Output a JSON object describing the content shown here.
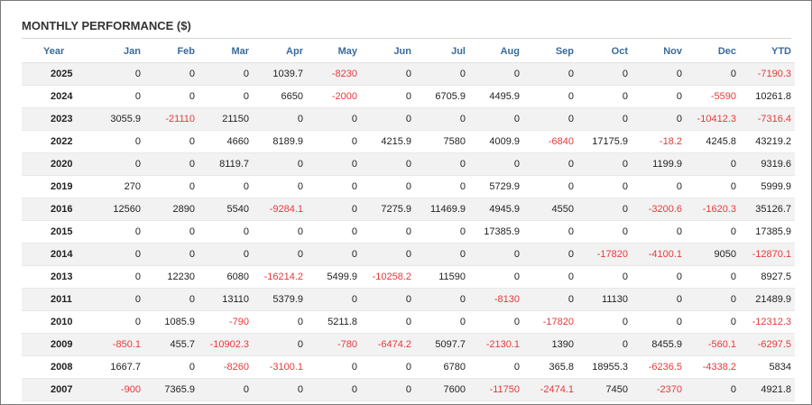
{
  "title": "MONTHLY PERFORMANCE ($)",
  "colors": {
    "header_text": "#3a6b9a",
    "negative": "#e8393b",
    "row_stripe": "#f2f2f2"
  },
  "columns": [
    "Year",
    "Jan",
    "Feb",
    "Mar",
    "Apr",
    "May",
    "Jun",
    "Jul",
    "Aug",
    "Sep",
    "Oct",
    "Nov",
    "Dec",
    "YTD"
  ],
  "rows": [
    {
      "year": "2025",
      "values": [
        "0",
        "0",
        "0",
        "1039.7",
        "-8230",
        "0",
        "0",
        "0",
        "0",
        "0",
        "0",
        "0",
        "-7190.3"
      ]
    },
    {
      "year": "2024",
      "values": [
        "0",
        "0",
        "0",
        "6650",
        "-2000",
        "0",
        "6705.9",
        "4495.9",
        "0",
        "0",
        "0",
        "-5590",
        "10261.8"
      ]
    },
    {
      "year": "2023",
      "values": [
        "3055.9",
        "-21110",
        "21150",
        "0",
        "0",
        "0",
        "0",
        "0",
        "0",
        "0",
        "0",
        "-10412.3",
        "-7316.4"
      ]
    },
    {
      "year": "2022",
      "values": [
        "0",
        "0",
        "4660",
        "8189.9",
        "0",
        "4215.9",
        "7580",
        "4009.9",
        "-6840",
        "17175.9",
        "-18.2",
        "4245.8",
        "43219.2"
      ]
    },
    {
      "year": "2020",
      "values": [
        "0",
        "0",
        "8119.7",
        "0",
        "0",
        "0",
        "0",
        "0",
        "0",
        "0",
        "1199.9",
        "0",
        "9319.6"
      ]
    },
    {
      "year": "2019",
      "values": [
        "270",
        "0",
        "0",
        "0",
        "0",
        "0",
        "0",
        "5729.9",
        "0",
        "0",
        "0",
        "0",
        "5999.9"
      ]
    },
    {
      "year": "2016",
      "values": [
        "12560",
        "2890",
        "5540",
        "-9284.1",
        "0",
        "7275.9",
        "11469.9",
        "4945.9",
        "4550",
        "0",
        "-3200.6",
        "-1620.3",
        "35126.7"
      ]
    },
    {
      "year": "2015",
      "values": [
        "0",
        "0",
        "0",
        "0",
        "0",
        "0",
        "0",
        "17385.9",
        "0",
        "0",
        "0",
        "0",
        "17385.9"
      ]
    },
    {
      "year": "2014",
      "values": [
        "0",
        "0",
        "0",
        "0",
        "0",
        "0",
        "0",
        "0",
        "0",
        "-17820",
        "-4100.1",
        "9050",
        "-12870.1"
      ]
    },
    {
      "year": "2013",
      "values": [
        "0",
        "12230",
        "6080",
        "-16214.2",
        "5499.9",
        "-10258.2",
        "11590",
        "0",
        "0",
        "0",
        "0",
        "0",
        "8927.5"
      ]
    },
    {
      "year": "2011",
      "values": [
        "0",
        "0",
        "13110",
        "5379.9",
        "0",
        "0",
        "0",
        "-8130",
        "0",
        "11130",
        "0",
        "0",
        "21489.9"
      ]
    },
    {
      "year": "2010",
      "values": [
        "0",
        "1085.9",
        "-790",
        "0",
        "5211.8",
        "0",
        "0",
        "0",
        "-17820",
        "0",
        "0",
        "0",
        "-12312.3"
      ]
    },
    {
      "year": "2009",
      "values": [
        "-850.1",
        "455.7",
        "-10902.3",
        "0",
        "-780",
        "-6474.2",
        "5097.7",
        "-2130.1",
        "1390",
        "0",
        "8455.9",
        "-560.1",
        "-6297.5"
      ]
    },
    {
      "year": "2008",
      "values": [
        "1667.7",
        "0",
        "-8260",
        "-3100.1",
        "0",
        "0",
        "6780",
        "0",
        "365.8",
        "18955.3",
        "-6236.5",
        "-4338.2",
        "5834"
      ]
    },
    {
      "year": "2007",
      "values": [
        "-900",
        "7365.9",
        "0",
        "0",
        "0",
        "0",
        "7600",
        "-11750",
        "-2474.1",
        "7450",
        "-2370",
        "0",
        "4921.8"
      ]
    }
  ]
}
